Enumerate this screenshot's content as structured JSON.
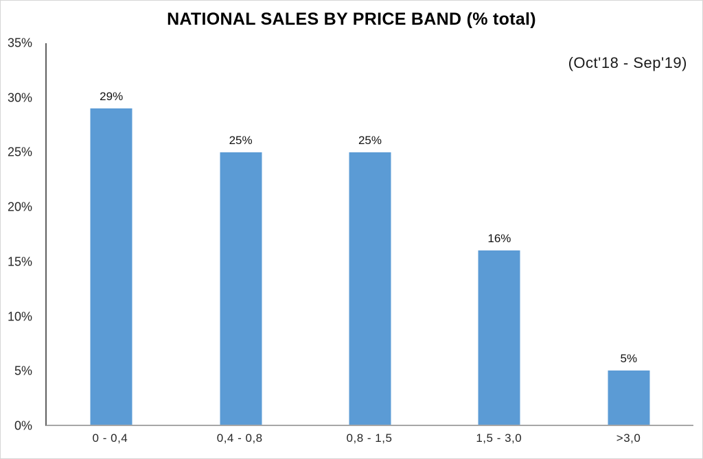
{
  "chart_data": {
    "type": "bar",
    "title": "NATIONAL SALES BY PRICE BAND (% total)",
    "subtitle": "(Oct'18 - Sep'19)",
    "categories": [
      "0 - 0,4",
      "0,4 - 0,8",
      "0,8 - 1,5",
      "1,5 - 3,0",
      ">3,0"
    ],
    "values": [
      29,
      25,
      25,
      16,
      5
    ],
    "data_labels": [
      "29%",
      "25%",
      "25%",
      "16%",
      "5%"
    ],
    "xlabel": "",
    "ylabel": "",
    "ylim": [
      0,
      35
    ],
    "y_ticks": [
      0,
      5,
      10,
      15,
      20,
      25,
      30,
      35
    ],
    "y_tick_labels": [
      "0%",
      "5%",
      "10%",
      "15%",
      "20%",
      "25%",
      "30%",
      "35%"
    ],
    "grid": false,
    "legend": false,
    "bar_color": "#5B9BD5",
    "axis_line_color_y": "#5f5f5f",
    "axis_line_color_x": "#a6a6a6"
  }
}
